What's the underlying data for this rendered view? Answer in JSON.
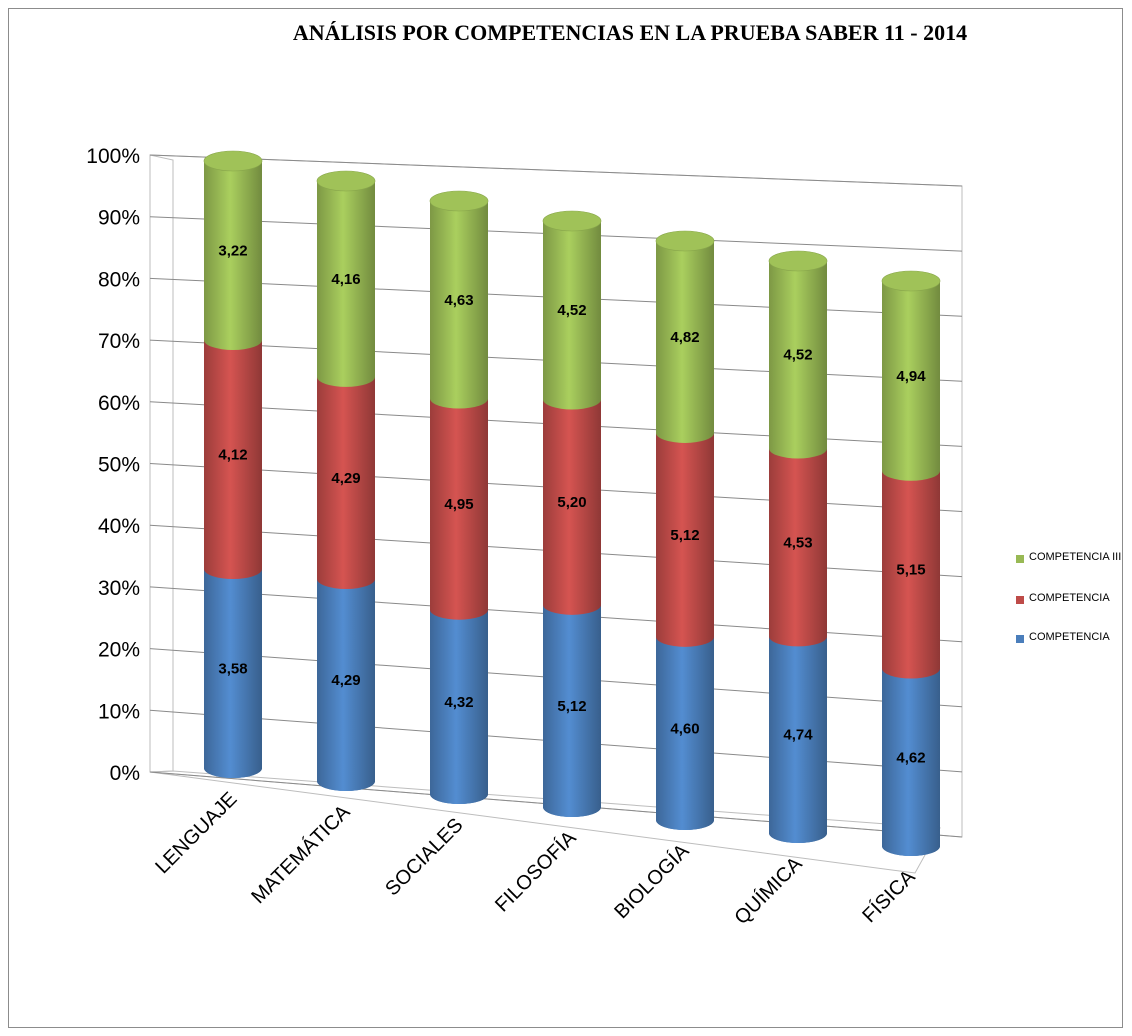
{
  "chart_data": {
    "type": "bar",
    "stacking": "percent",
    "style": "3d-cylinder",
    "title": "ANÁLISIS POR COMPETENCIAS EN LA PRUEBA SABER 11 - 2014",
    "categories": [
      "LENGUAJE",
      "MATEMÁTICA",
      "SOCIALES",
      "FILOSOFÍA",
      "BIOLOGÍA",
      "QUÍMICA",
      "FÍSICA"
    ],
    "series": [
      {
        "name": "COMPETENCIA",
        "color": "#4a7ebb",
        "values": [
          3.58,
          4.29,
          4.32,
          5.12,
          4.6,
          4.74,
          4.62
        ],
        "labels": [
          "3,58",
          "4,29",
          "4,32",
          "5,12",
          "4,60",
          "4,74",
          "4,62"
        ]
      },
      {
        "name": "COMPETENCIA",
        "color": "#be4b48",
        "values": [
          4.12,
          4.29,
          4.95,
          5.2,
          5.12,
          4.53,
          5.15
        ],
        "labels": [
          "4,12",
          "4,29",
          "4,95",
          "5,20",
          "5,12",
          "4,53",
          "5,15"
        ]
      },
      {
        "name": "COMPETENCIA III",
        "color": "#98b954",
        "values": [
          3.22,
          4.16,
          4.63,
          4.52,
          4.82,
          4.52,
          4.94
        ],
        "labels": [
          "3,22",
          "4,16",
          "4,63",
          "4,52",
          "4,82",
          "4,52",
          "4,94"
        ]
      }
    ],
    "yticks": [
      "0%",
      "10%",
      "20%",
      "30%",
      "40%",
      "50%",
      "60%",
      "70%",
      "80%",
      "90%",
      "100%"
    ],
    "ylim": [
      0,
      100
    ],
    "grid": true,
    "legend_position": "right"
  }
}
